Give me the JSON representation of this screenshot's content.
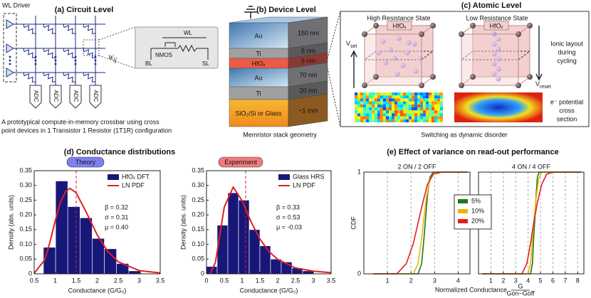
{
  "panel_a": {
    "title": "(a) Circuit Level",
    "driver_label": "WL Driver",
    "weight_label": {
      "symbol": "W",
      "subscript": "ij"
    },
    "adc_labels": [
      "ADC",
      "ADC",
      "ADC",
      "ADC"
    ],
    "inset": {
      "wl": "WL",
      "nmos": "NMOS",
      "bl": "BL",
      "sl": "SL"
    },
    "caption": [
      "A prototypical compute-in-memory crossbar using cross",
      "point devices in 1 Transistor 1 Resistor (1T1R) configuration"
    ]
  },
  "panel_b": {
    "title": "(b) Device Level",
    "layers": [
      {
        "material": "Au",
        "thickness": "150 nm"
      },
      {
        "material": "Ti",
        "thickness": "5 nm"
      },
      {
        "material": "HfOₓ",
        "thickness": "5 nm"
      },
      {
        "material": "Au",
        "thickness": "70 nm"
      },
      {
        "material": "Ti",
        "thickness": "20 nm"
      },
      {
        "material": "SiO₂/Si or Glass",
        "thickness": "~1 mm"
      }
    ],
    "caption": "Memristor stack geometry"
  },
  "panel_c": {
    "title": "(c) Atomic Level",
    "states": [
      {
        "label": "High Resistance State",
        "material": "HfOₓ"
      },
      {
        "label": "Low Resistance State",
        "material": "HfOₓ"
      }
    ],
    "set_voltage": {
      "symbol": "V",
      "subscript": "set"
    },
    "reset_voltage": {
      "symbol": "V",
      "subscript": "reset"
    },
    "ionic_note": [
      "Ionic layout",
      "during",
      "cycling"
    ],
    "potential_note": [
      "e⁻ potential",
      "cross",
      "section"
    ],
    "caption": "Switching as dynamic disorder"
  },
  "panel_d": {
    "title": "(d) Conductance distributions"
  },
  "panel_e": {
    "title": "(e) Effect of variance on read-out performance",
    "xlabel": "Normalized Conductance",
    "xlabel_fraction": {
      "numerator": "G",
      "denominator": "Gon−Goff"
    }
  },
  "chart_data": [
    {
      "type": "histogram",
      "badge": "Theory",
      "badge_color": "#7f7ff2",
      "name": "HfOₓ DFT",
      "color": "#17177a",
      "bins": [
        0.72,
        1.01,
        1.3,
        1.59,
        1.88,
        2.17,
        2.46,
        2.75,
        3.04
      ],
      "values": [
        0.09,
        0.315,
        0.228,
        0.19,
        0.12,
        0.085,
        0.035,
        0.01
      ],
      "curve": {
        "name": "LN PDF",
        "color": "#e02020",
        "x": [
          0.5,
          0.75,
          0.875,
          1.0,
          1.125,
          1.25,
          1.35,
          1.5,
          1.75,
          2.0,
          2.25,
          2.5,
          3.0,
          3.5
        ],
        "values": [
          0.002,
          0.047,
          0.107,
          0.179,
          0.242,
          0.28,
          0.29,
          0.275,
          0.206,
          0.132,
          0.076,
          0.041,
          0.011,
          0.003
        ]
      },
      "dashed_x": 1.5,
      "annotations": [
        "β = 0.32",
        "σ = 0.31",
        "μ = 0.40"
      ],
      "legend": "upper right",
      "xlabel": "Conductance (G/G₀)",
      "ylabel": "Density (abs. units)",
      "xlim": [
        0.5,
        3.5
      ],
      "xticks": [
        0.5,
        1,
        1.5,
        2,
        2.5,
        3,
        3.5
      ],
      "ylim": [
        0,
        0.35
      ],
      "yticks": [
        0,
        0.05,
        {
          "value": 0.1,
          "label": "0.10"
        },
        0.15,
        {
          "value": 0.2,
          "label": "0.20"
        },
        0.25,
        {
          "value": 0.3,
          "label": "0.30"
        },
        0.35
      ]
    },
    {
      "type": "histogram",
      "badge": "Experiment",
      "badge_color": "#f47a7a",
      "name": "Glass HRS",
      "color": "#17177a",
      "bins": [
        0,
        0.3,
        0.6,
        0.9,
        1.2,
        1.5,
        1.8,
        2.1,
        2.4,
        2.7,
        3.0
      ],
      "values": [
        0.025,
        0.165,
        0.275,
        0.25,
        0.15,
        0.095,
        0.05,
        0.04,
        0.02,
        0.01
      ],
      "curve": {
        "name": "LN PDF",
        "color": "#e02020",
        "x": [
          0.1,
          0.25,
          0.375,
          0.5,
          0.75,
          1.0,
          1.25,
          1.5,
          1.75,
          2.0,
          2.5,
          3.0,
          3.5
        ],
        "values": [
          0.0,
          0.038,
          0.132,
          0.227,
          0.294,
          0.248,
          0.177,
          0.118,
          0.076,
          0.049,
          0.02,
          0.009,
          0.004
        ]
      },
      "dashed_x": 1.1,
      "annotations": [
        "β = 0.33",
        "σ = 0.53",
        "μ = -0.03"
      ],
      "legend": "upper right",
      "xlabel": "Conductance (G/G₀)",
      "ylabel": "Density (abs. units)",
      "xlim": [
        0,
        3.5
      ],
      "xticks": [
        0,
        0.5,
        1,
        1.5,
        2,
        2.5,
        3,
        3.5
      ],
      "ylim": [
        0,
        0.35
      ],
      "yticks": [
        0,
        0.05,
        {
          "value": 0.1,
          "label": "0.10"
        },
        0.15,
        {
          "value": 0.2,
          "label": "0.20"
        },
        0.25,
        {
          "value": 0.3,
          "label": "0.30"
        },
        0.35
      ]
    },
    {
      "type": "line",
      "subtitle": "2 ON / 2 OFF",
      "ylabel": "CDF",
      "grid": true,
      "xlim": [
        0,
        4.5
      ],
      "xticks": [
        1,
        2,
        3,
        4
      ],
      "ylim": [
        0,
        1
      ],
      "yticks": [
        0,
        1
      ],
      "series": [
        {
          "name": "5%",
          "color": "#1a7a1a",
          "x": [
            0.4,
            2.3,
            2.45,
            2.55,
            2.62,
            2.7,
            2.8,
            2.95,
            4.4
          ],
          "values": [
            0,
            0,
            0.1,
            0.35,
            0.55,
            0.78,
            0.95,
            1,
            1
          ]
        },
        {
          "name": "10%",
          "color": "#f0b400",
          "x": [
            0.4,
            2.1,
            2.3,
            2.45,
            2.55,
            2.65,
            2.8,
            3.0,
            4.4
          ],
          "values": [
            0,
            0,
            0.1,
            0.35,
            0.55,
            0.75,
            0.93,
            1,
            1
          ]
        },
        {
          "name": "20%",
          "color": "#e02020",
          "x": [
            0.4,
            1.4,
            1.8,
            2.1,
            2.3,
            2.5,
            2.7,
            2.95,
            3.3,
            4.4
          ],
          "values": [
            0,
            0,
            0.1,
            0.3,
            0.5,
            0.7,
            0.88,
            0.98,
            1,
            1
          ]
        }
      ]
    },
    {
      "type": "line",
      "subtitle": "4 ON / 4 OFF",
      "grid": true,
      "xlim": [
        0,
        8.5
      ],
      "xticks": [
        1,
        2,
        3,
        4,
        5,
        6,
        7,
        8
      ],
      "ylim": [
        0,
        1
      ],
      "series": [
        {
          "color": "#1a7a1a",
          "x": [
            0.3,
            4.2,
            4.35,
            4.45,
            4.55,
            4.65,
            4.75,
            4.9,
            8.3
          ],
          "values": [
            0,
            0,
            0.1,
            0.35,
            0.55,
            0.78,
            0.95,
            1,
            1
          ]
        },
        {
          "color": "#f0b400",
          "x": [
            0.3,
            4.0,
            4.2,
            4.35,
            4.5,
            4.65,
            4.85,
            5.1,
            8.3
          ],
          "values": [
            0,
            0,
            0.1,
            0.35,
            0.55,
            0.75,
            0.93,
            1,
            1
          ]
        },
        {
          "color": "#e02020",
          "x": [
            0.3,
            3.5,
            3.9,
            4.2,
            4.45,
            4.75,
            5.1,
            5.5,
            6.0,
            8.3
          ],
          "values": [
            0,
            0,
            0.1,
            0.3,
            0.5,
            0.7,
            0.88,
            0.98,
            1,
            1
          ]
        }
      ]
    }
  ]
}
